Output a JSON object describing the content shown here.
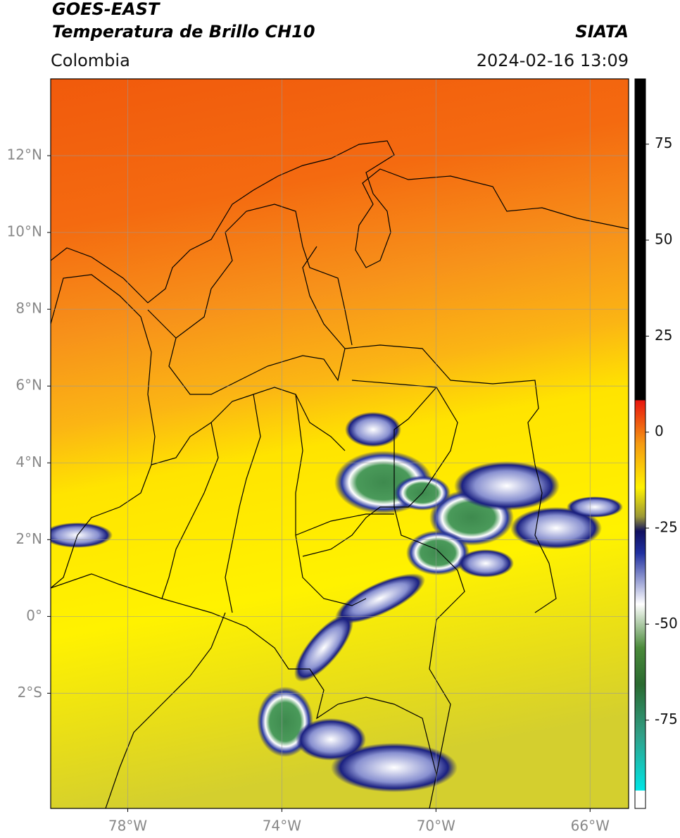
{
  "header": {
    "source": "GOES-EAST",
    "product": "Temperatura de Brillo CH10",
    "agency": "SIATA",
    "region": "Colombia",
    "datetime": "2024-02-16 13:09"
  },
  "map": {
    "xlim": [
      -80,
      -65
    ],
    "ylim": [
      -5,
      14
    ],
    "xticks": [
      {
        "value": -78,
        "label": "78°W"
      },
      {
        "value": -74,
        "label": "74°W"
      },
      {
        "value": -70,
        "label": "70°W"
      },
      {
        "value": -66,
        "label": "66°W"
      }
    ],
    "yticks": [
      {
        "value": 12,
        "label": "12°N"
      },
      {
        "value": 10,
        "label": "10°N"
      },
      {
        "value": 8,
        "label": "8°N"
      },
      {
        "value": 6,
        "label": "6°N"
      },
      {
        "value": 4,
        "label": "4°N"
      },
      {
        "value": 2,
        "label": "2°N"
      },
      {
        "value": 0,
        "label": "0°"
      },
      {
        "value": -2,
        "label": "2°S"
      }
    ],
    "grid": true
  },
  "colorbar": {
    "clim": [
      -98,
      92
    ],
    "ticks": [
      75,
      50,
      25,
      0,
      -25,
      -50,
      -75
    ]
  }
}
